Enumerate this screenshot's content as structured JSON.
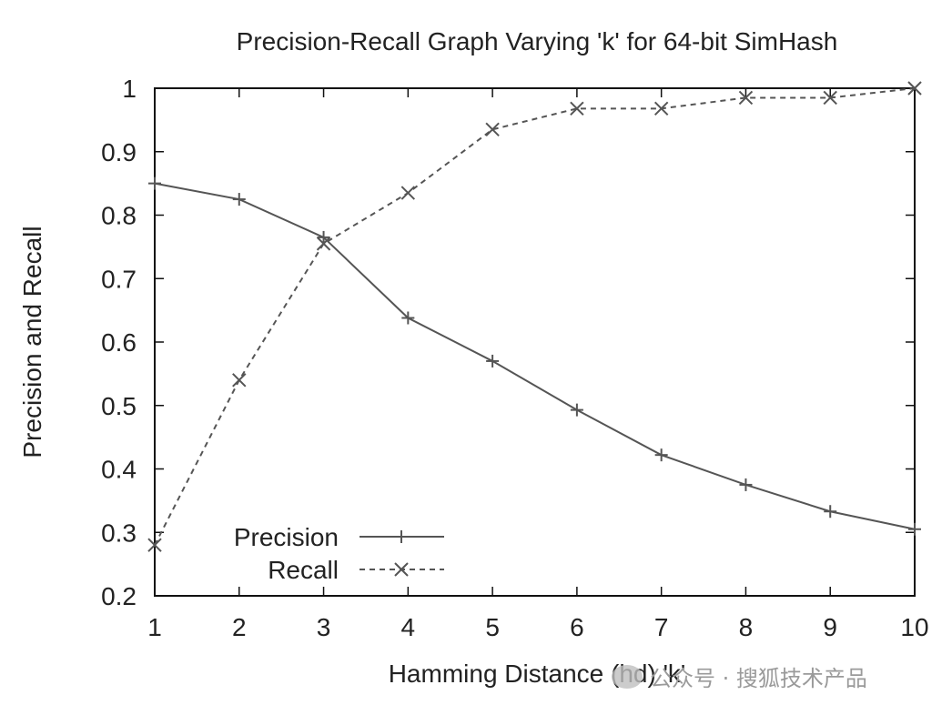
{
  "chart_data": {
    "type": "line",
    "title": "Precision-Recall Graph Varying 'k' for 64-bit SimHash",
    "xlabel": "Hamming Distance (hd) 'k'",
    "ylabel": "Precision and Recall",
    "x": [
      1,
      2,
      3,
      4,
      5,
      6,
      7,
      8,
      9,
      10
    ],
    "xlim": [
      1,
      10
    ],
    "ylim": [
      0.2,
      1
    ],
    "xticks": [
      "1",
      "2",
      "3",
      "4",
      "5",
      "6",
      "7",
      "8",
      "9",
      "10"
    ],
    "yticks": [
      "0.2",
      "0.3",
      "0.4",
      "0.5",
      "0.6",
      "0.7",
      "0.8",
      "0.9",
      "1"
    ],
    "grid": false,
    "legend_position": "bottom-left",
    "series": [
      {
        "name": "Precision",
        "style": "solid",
        "marker": "plus",
        "color": "#555555",
        "values": [
          0.85,
          0.825,
          0.765,
          0.638,
          0.57,
          0.493,
          0.422,
          0.375,
          0.333,
          0.305
        ]
      },
      {
        "name": "Recall",
        "style": "dashed",
        "marker": "cross",
        "color": "#555555",
        "values": [
          0.28,
          0.54,
          0.755,
          0.835,
          0.935,
          0.968,
          0.968,
          0.985,
          0.985,
          1.0
        ]
      }
    ]
  },
  "watermark": {
    "text": "公众号 · 搜狐技术产品"
  }
}
